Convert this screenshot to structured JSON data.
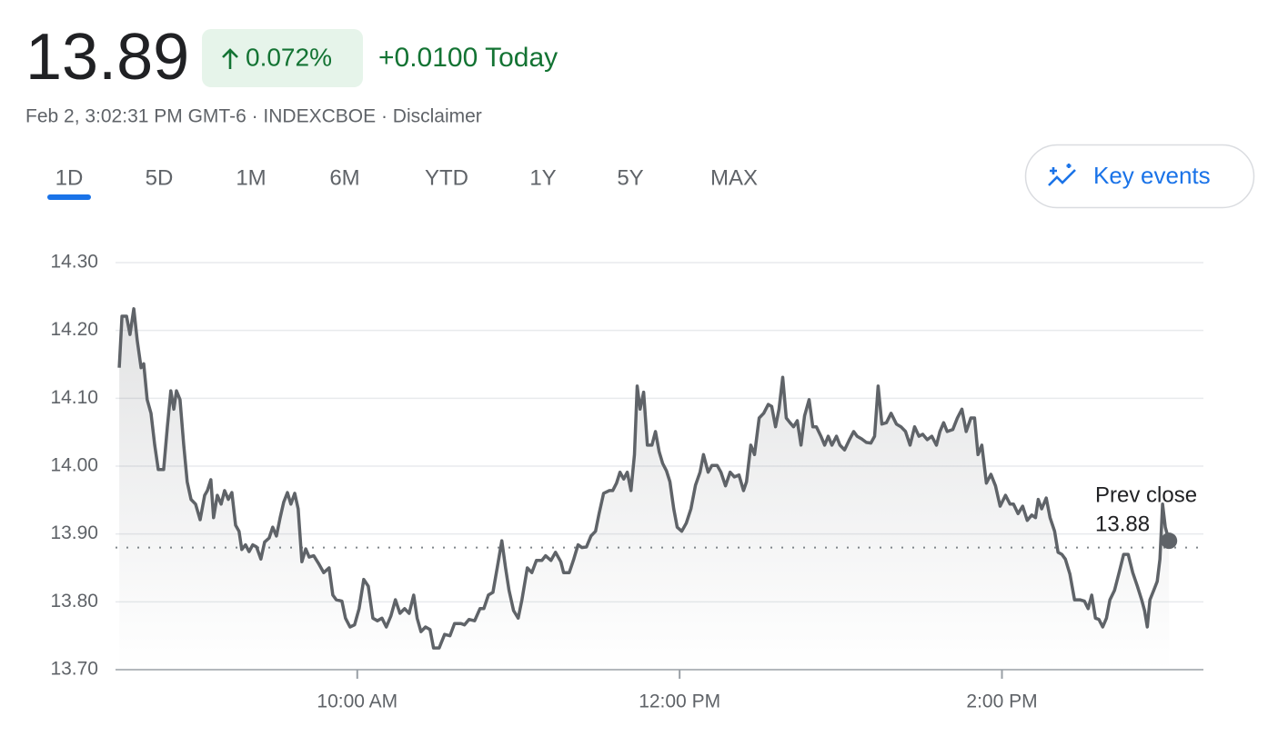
{
  "header": {
    "price": "13.89",
    "change_percent": "0.072%",
    "change_today": "+0.0100 Today",
    "meta": "Feb 2, 3:02:31 PM GMT-6 · INDEXCBOE · Disclaimer"
  },
  "tabs": [
    "1D",
    "5D",
    "1M",
    "6M",
    "YTD",
    "1Y",
    "5Y",
    "MAX"
  ],
  "active_tab_index": 0,
  "key_events": "Key events",
  "chart_data": {
    "type": "line",
    "color": "#5f6368",
    "fill": true,
    "xlim": [
      510,
      915
    ],
    "xticks": [
      {
        "value": 600,
        "label": "10:00 AM"
      },
      {
        "value": 720,
        "label": "12:00 PM"
      },
      {
        "value": 840,
        "label": "2:00 PM"
      }
    ],
    "ylim": [
      13.7,
      14.3
    ],
    "yticks": [
      {
        "value": 13.7,
        "label": "13.70"
      },
      {
        "value": 13.8,
        "label": "13.80"
      },
      {
        "value": 13.9,
        "label": "13.90"
      },
      {
        "value": 14.0,
        "label": "14.00"
      },
      {
        "value": 14.1,
        "label": "14.10"
      },
      {
        "value": 14.2,
        "label": "14.20"
      },
      {
        "value": 14.3,
        "label": "14.30"
      }
    ],
    "grid": true,
    "reference_label": "Prev close",
    "reference_value": 13.88,
    "x": [
      511.4,
      512.4,
      514.1,
      515.4,
      516.8,
      518.1,
      519.5,
      520.5,
      521.8,
      523.2,
      524.6,
      525.9,
      527.9,
      529.3,
      530.6,
      531.7,
      532.7,
      534.0,
      535.4,
      536.7,
      538.1,
      539.8,
      541.5,
      543.2,
      544.2,
      545.5,
      546.5,
      547.9,
      549.3,
      550.6,
      552.0,
      553.3,
      554.7,
      556.0,
      557.0,
      558.4,
      559.7,
      561.1,
      562.5,
      564.1,
      565.5,
      567.2,
      568.5,
      569.9,
      571.3,
      572.6,
      574.0,
      575.3,
      576.7,
      578.0,
      579.4,
      580.8,
      582.1,
      583.8,
      585.5,
      587.5,
      589.5,
      590.9,
      592.2,
      594.3,
      595.6,
      597.3,
      599.0,
      600.7,
      602.4,
      604.1,
      605.8,
      607.5,
      609.2,
      610.8,
      612.5,
      614.2,
      615.9,
      617.6,
      619.3,
      621.0,
      622.3,
      623.7,
      625.4,
      627.1,
      628.4,
      630.5,
      632.5,
      634.5,
      636.2,
      638.6,
      639.9,
      641.6,
      643.7,
      645.7,
      647.1,
      648.8,
      650.5,
      652.1,
      653.8,
      655.2,
      656.5,
      658.2,
      659.9,
      661.3,
      663.3,
      665.0,
      666.7,
      668.7,
      670.1,
      672.1,
      673.8,
      675.8,
      676.8,
      678.9,
      680.6,
      682.2,
      683.6,
      685.3,
      687.0,
      688.7,
      690.0,
      691.7,
      693.8,
      695.1,
      696.5,
      697.8,
      699.2,
      700.5,
      701.9,
      703.2,
      704.2,
      705.3,
      706.6,
      708.0,
      709.7,
      711.0,
      712.4,
      713.7,
      715.1,
      716.4,
      717.8,
      719.1,
      720.8,
      722.5,
      724.2,
      725.9,
      727.6,
      728.9,
      730.6,
      732.0,
      734.0,
      735.4,
      737.1,
      738.8,
      740.4,
      742.1,
      743.8,
      744.9,
      746.5,
      747.9,
      749.6,
      751.3,
      753.0,
      754.3,
      755.7,
      757.0,
      758.4,
      759.7,
      761.1,
      762.4,
      763.8,
      765.2,
      766.5,
      768.2,
      769.6,
      770.9,
      772.6,
      774.0,
      775.3,
      776.7,
      778.4,
      779.7,
      781.4,
      783.1,
      784.8,
      786.1,
      787.8,
      789.5,
      791.2,
      792.6,
      793.9,
      795.3,
      797.0,
      798.7,
      800.7,
      802.4,
      804.1,
      805.8,
      807.5,
      809.1,
      810.5,
      812.2,
      813.9,
      815.6,
      816.9,
      818.3,
      819.6,
      821.7,
      823.4,
      825.1,
      826.7,
      828.4,
      829.8,
      831.1,
      832.5,
      834.2,
      835.9,
      837.6,
      839.3,
      841.3,
      843.0,
      844.3,
      846.0,
      847.7,
      849.4,
      851.1,
      852.5,
      853.5,
      854.8,
      856.5,
      857.9,
      859.6,
      860.9,
      862.3,
      863.6,
      865.3,
      867.0,
      869.0,
      870.7,
      872.1,
      873.4,
      874.8,
      876.1,
      877.5,
      878.9,
      880.2,
      881.9,
      883.6,
      885.3,
      887.0,
      888.7,
      890.4,
      892.0,
      893.1,
      894.1,
      895.1,
      896.5,
      897.8,
      898.8,
      899.8,
      900.8,
      902.2
    ],
    "values": [
      14.145,
      14.221,
      14.221,
      14.194,
      14.232,
      14.185,
      14.145,
      14.151,
      14.098,
      14.078,
      14.031,
      13.995,
      13.995,
      14.058,
      14.111,
      14.084,
      14.111,
      14.098,
      14.031,
      13.977,
      13.951,
      13.944,
      13.921,
      13.957,
      13.964,
      13.98,
      13.924,
      13.957,
      13.944,
      13.964,
      13.951,
      13.961,
      13.913,
      13.904,
      13.877,
      13.884,
      13.874,
      13.884,
      13.881,
      13.863,
      13.888,
      13.894,
      13.91,
      13.897,
      13.924,
      13.947,
      13.961,
      13.944,
      13.96,
      13.937,
      13.859,
      13.878,
      13.866,
      13.868,
      13.857,
      13.843,
      13.85,
      13.81,
      13.803,
      13.801,
      13.776,
      13.763,
      13.766,
      13.79,
      13.833,
      13.823,
      13.776,
      13.772,
      13.776,
      13.763,
      13.779,
      13.803,
      13.783,
      13.79,
      13.783,
      13.81,
      13.776,
      13.756,
      13.763,
      13.759,
      13.732,
      13.732,
      13.752,
      13.75,
      13.768,
      13.768,
      13.766,
      13.774,
      13.772,
      13.79,
      13.79,
      13.81,
      13.814,
      13.85,
      13.89,
      13.85,
      13.817,
      13.787,
      13.776,
      13.803,
      13.85,
      13.843,
      13.861,
      13.861,
      13.868,
      13.861,
      13.873,
      13.859,
      13.843,
      13.843,
      13.863,
      13.884,
      13.88,
      13.881,
      13.897,
      13.904,
      13.93,
      13.96,
      13.964,
      13.964,
      13.975,
      13.991,
      13.981,
      13.991,
      13.964,
      14.017,
      14.118,
      14.084,
      14.109,
      14.031,
      14.031,
      14.051,
      14.021,
      14.004,
      13.993,
      13.977,
      13.937,
      13.91,
      13.904,
      13.916,
      13.937,
      13.972,
      13.991,
      14.017,
      13.991,
      14.001,
      14.001,
      13.991,
      13.971,
      13.991,
      13.984,
      13.987,
      13.964,
      13.977,
      14.031,
      14.017,
      14.071,
      14.078,
      14.091,
      14.088,
      14.058,
      14.084,
      14.131,
      14.071,
      14.064,
      14.058,
      14.067,
      14.031,
      14.074,
      14.098,
      14.058,
      14.058,
      14.044,
      14.031,
      14.044,
      14.031,
      14.044,
      14.031,
      14.024,
      14.038,
      14.051,
      14.044,
      14.04,
      14.035,
      14.034,
      14.044,
      14.118,
      14.062,
      14.064,
      14.078,
      14.062,
      14.058,
      14.051,
      14.031,
      14.058,
      14.044,
      14.047,
      14.039,
      14.044,
      14.031,
      14.051,
      14.064,
      14.051,
      14.054,
      14.071,
      14.084,
      14.051,
      14.071,
      14.071,
      14.017,
      14.031,
      13.975,
      13.988,
      13.971,
      13.941,
      13.957,
      13.944,
      13.944,
      13.93,
      13.941,
      13.92,
      13.928,
      13.924,
      13.951,
      13.937,
      13.953,
      13.924,
      13.904,
      13.873,
      13.87,
      13.863,
      13.841,
      13.803,
      13.803,
      13.801,
      13.79,
      13.81,
      13.776,
      13.774,
      13.763,
      13.776,
      13.803,
      13.817,
      13.843,
      13.87,
      13.87,
      13.843,
      13.823,
      13.803,
      13.787,
      13.763,
      13.803,
      13.817,
      13.83,
      13.863,
      13.944,
      13.91,
      13.89
    ]
  }
}
